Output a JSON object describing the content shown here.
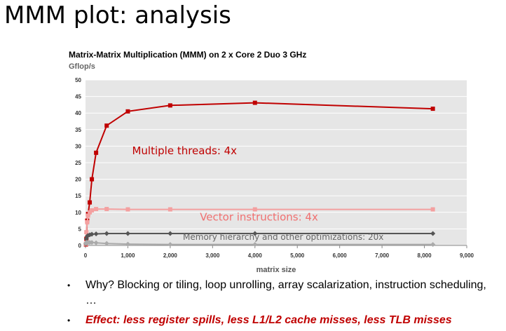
{
  "slide": {
    "title": "MMM plot: analysis",
    "bullets": [
      {
        "text": "Why? Blocking or tiling, loop unrolling, array scalarization, instruction scheduling, …",
        "style": "normal"
      },
      {
        "text": "Effect: less register spills, less L1/L2 cache misses, less TLB misses",
        "style": "effect"
      }
    ]
  },
  "chart_data": {
    "type": "line",
    "title": "Matrix-Matrix Multiplication (MMM) on 2 x Core 2 Duo 3 GHz",
    "ylabel": "Gflop/s",
    "xlabel": "matrix size",
    "xlim": [
      0,
      9000
    ],
    "ylim": [
      0,
      50
    ],
    "xticks": [
      0,
      1000,
      2000,
      3000,
      4000,
      5000,
      6000,
      7000,
      8000,
      9000
    ],
    "xtick_labels": [
      "0",
      "1,000",
      "2,000",
      "3,000",
      "4,000",
      "5,000",
      "6,000",
      "7,000",
      "8,000",
      "9,000"
    ],
    "yticks": [
      0,
      5,
      10,
      15,
      20,
      25,
      30,
      35,
      40,
      45,
      50
    ],
    "grid": true,
    "background": "#e6e6e6",
    "series": [
      {
        "x": [
          10,
          20,
          40,
          60,
          100,
          150,
          250,
          500,
          1000,
          2000,
          4000,
          8200
        ],
        "y": [
          0.3,
          2.0,
          7.5,
          9.5,
          13.0,
          20.0,
          28.0,
          36.2,
          40.5,
          42.3,
          43.1,
          41.3
        ],
        "color": "#c00000",
        "marker": "square"
      },
      {
        "x": [
          10,
          20,
          40,
          60,
          100,
          150,
          250,
          500,
          1000,
          2000,
          4000,
          8200
        ],
        "y": [
          0.5,
          4.0,
          7.0,
          9.0,
          10.0,
          10.6,
          11.0,
          11.0,
          10.9,
          10.9,
          10.9,
          10.9
        ],
        "color": "#f4a0a0",
        "marker": "square"
      },
      {
        "x": [
          10,
          20,
          40,
          60,
          100,
          150,
          250,
          500,
          1000,
          2000,
          4000,
          8200
        ],
        "y": [
          0.5,
          2.0,
          2.8,
          3.0,
          3.2,
          3.4,
          3.5,
          3.6,
          3.6,
          3.6,
          3.6,
          3.6
        ],
        "color": "#555555",
        "marker": "diamond"
      },
      {
        "x": [
          10,
          20,
          40,
          60,
          100,
          150,
          250,
          500,
          1000,
          2000,
          4000,
          8200
        ],
        "y": [
          0.6,
          0.9,
          0.9,
          0.9,
          0.9,
          0.9,
          0.8,
          0.6,
          0.4,
          0.3,
          0.3,
          0.3
        ],
        "color": "#aaaaaa",
        "marker": "diamond"
      }
    ],
    "annotations": [
      {
        "text": "Multiple threads: 4x",
        "x": 1100,
        "y": 27.5,
        "color": "#c00000"
      },
      {
        "text": "Vector instructions: 4x",
        "x": 2700,
        "y": 7.5,
        "color": "#f07070"
      },
      {
        "text": "Memory hierarchy and other optimizations: 20x",
        "x": 2300,
        "y": 1.7,
        "color": "#666666"
      }
    ]
  }
}
